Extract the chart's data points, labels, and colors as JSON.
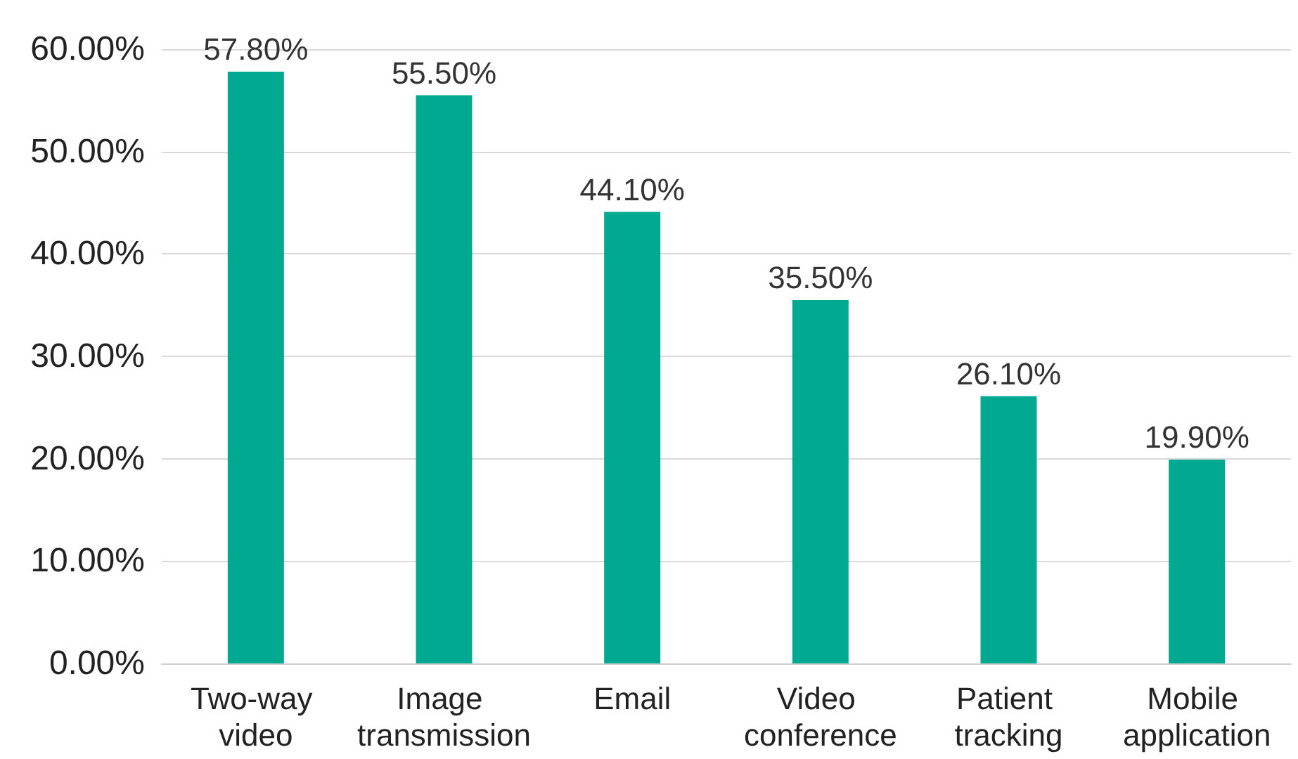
{
  "chart_data": {
    "type": "bar",
    "categories": [
      "Two-way video",
      "Image transmission",
      "Email",
      "Video conference",
      "Patient tracking",
      "Mobile application"
    ],
    "values": [
      57.8,
      55.5,
      44.1,
      35.5,
      26.1,
      19.9
    ],
    "value_labels": [
      "57.80%",
      "55.50%",
      "44.10%",
      "35.50%",
      "26.10%",
      "19.90%"
    ],
    "color": "#00a98f",
    "ylim": [
      0,
      60
    ],
    "yticks": [
      {
        "value": 0,
        "label": "0.00%"
      },
      {
        "value": 10,
        "label": "10.00%"
      },
      {
        "value": 20,
        "label": "20.00%"
      },
      {
        "value": 30,
        "label": "30.00%"
      },
      {
        "value": 40,
        "label": "40.00%"
      },
      {
        "value": 50,
        "label": "50.00%"
      },
      {
        "value": 60,
        "label": "60.00%"
      }
    ],
    "grid": "y"
  }
}
